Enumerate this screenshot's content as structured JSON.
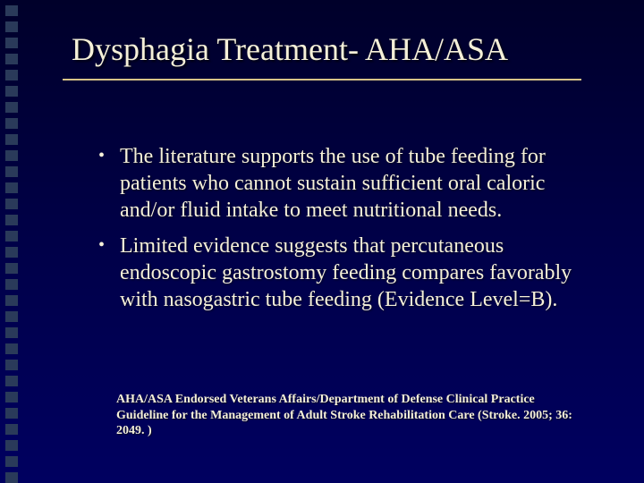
{
  "slide": {
    "background_gradient": [
      "#00002a",
      "#000048",
      "#000060"
    ],
    "text_color": "#f5f0d8",
    "underline_color": "#d8c488",
    "strip_square_color": "#2a3a5a",
    "strip_square_count": 30,
    "title": "Dysphagia Treatment- AHA/ASA",
    "title_fontsize": 36,
    "body_fontsize": 24,
    "bullets": [
      "The literature supports the use of tube feeding for patients who cannot sustain sufficient oral caloric and/or fluid intake to meet nutritional needs.",
      "Limited evidence suggests that percutaneous endoscopic gastrostomy feeding compares favorably with nasogastric tube feeding (Evidence Level=B)."
    ],
    "citation": "AHA/ASA Endorsed Veterans Affairs/Department of Defense Clinical Practice Guideline for the Management of Adult Stroke Rehabilitation Care (Stroke. 2005; 36: 2049. )",
    "citation_fontsize": 14
  }
}
